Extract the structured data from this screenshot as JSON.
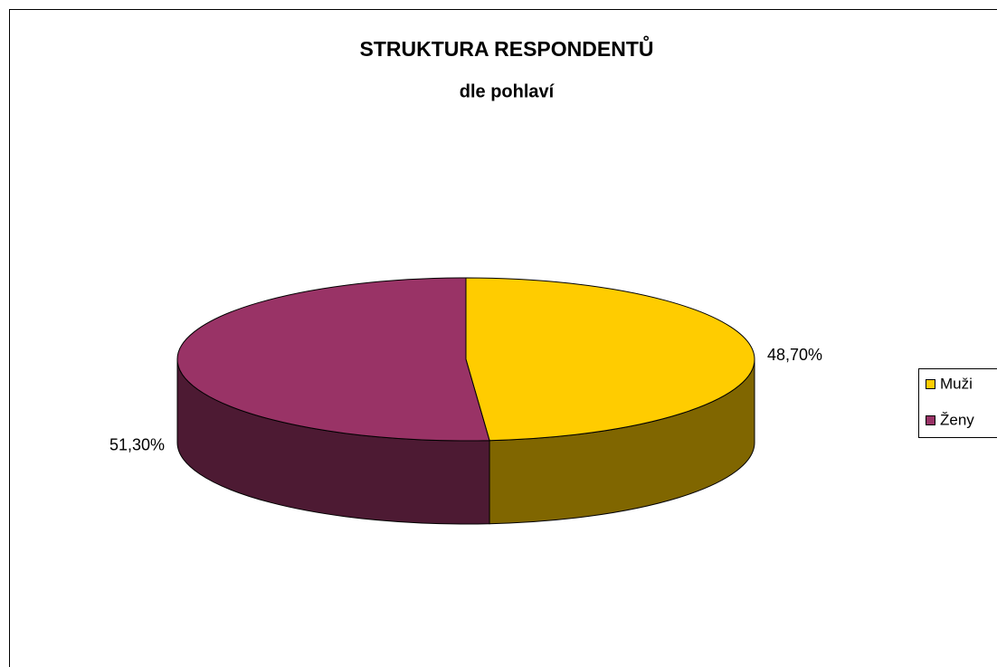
{
  "chart_data": {
    "type": "pie",
    "title": "STRUKTURA RESPONDENTŮ",
    "subtitle": "dle pohlaví",
    "categories": [
      "Muži",
      "Ženy"
    ],
    "values": [
      48.7,
      51.3
    ],
    "value_labels": [
      "48,70%",
      "51,30%"
    ],
    "colors": [
      "#ffcc00",
      "#993366"
    ],
    "legend": "right"
  }
}
